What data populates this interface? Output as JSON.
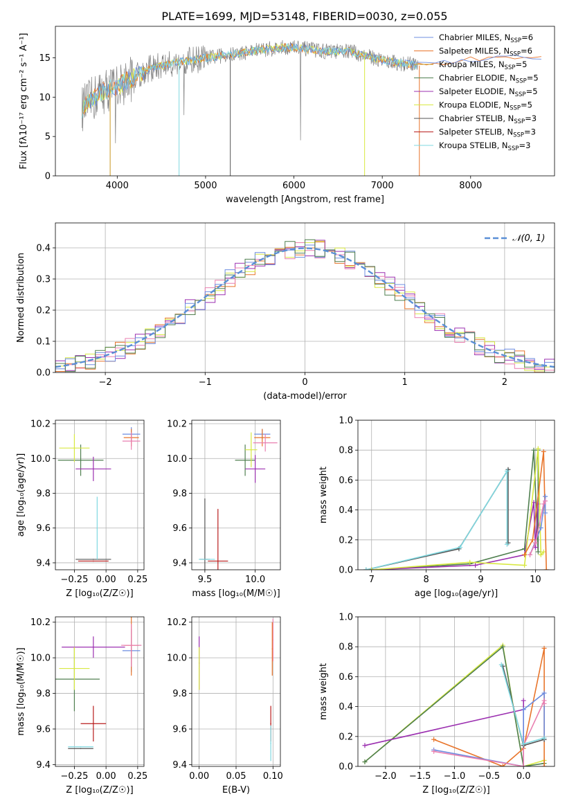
{
  "figure": {
    "title": "PLATE=1699, MJD=53148, FIBERID=0030, z=0.055"
  },
  "colors": {
    "Chabrier MILES": "#6c8ce0",
    "Salpeter MILES": "#e8742a",
    "Kroupa MILES": "#c8961e",
    "Chabrier ELODIE": "#4f7f4f",
    "Salpeter ELODIE": "#9b2fb0",
    "Kroupa ELODIE": "#d8e840",
    "Chabrier STELIB": "#555555",
    "Salpeter STELIB": "#b81c1c",
    "Kroupa STELIB": "#7fd8e0",
    "pink": "#e97fb0",
    "green": "#7ab84a",
    "gaussian": "#5a8fd6"
  },
  "chart_data": [
    {
      "id": "spectrum",
      "type": "line",
      "xlabel": "wavelength [Angstrom, rest frame]",
      "ylabel": "Flux [fλ10⁻¹⁷ erg cm⁻² s⁻¹ A⁻¹]",
      "xlim": [
        3300,
        8950
      ],
      "ylim": [
        0,
        19
      ],
      "xticks": [
        4000,
        5000,
        6000,
        7000,
        8000
      ],
      "yticks": [
        0,
        5,
        10,
        15
      ],
      "grid": false,
      "legend_position": "top-right",
      "legend": [
        {
          "label": "Chabrier MILES, N",
          "sub": "SSP",
          "suffix": "=6",
          "color_key": "Chabrier MILES"
        },
        {
          "label": "Salpeter MILES, N",
          "sub": "SSP",
          "suffix": "=6",
          "color_key": "Salpeter MILES"
        },
        {
          "label": "Kroupa MILES, N",
          "sub": "SSP",
          "suffix": "=5",
          "color_key": "Kroupa MILES"
        },
        {
          "label": "Chabrier ELODIE, N",
          "sub": "SSP",
          "suffix": "=5",
          "color_key": "Chabrier ELODIE"
        },
        {
          "label": "Salpeter ELODIE, N",
          "sub": "SSP",
          "suffix": "=5",
          "color_key": "Salpeter ELODIE"
        },
        {
          "label": "Kroupa ELODIE, N",
          "sub": "SSP",
          "suffix": "=5",
          "color_key": "Kroupa ELODIE"
        },
        {
          "label": "Chabrier STELIB, N",
          "sub": "SSP",
          "suffix": "=3",
          "color_key": "Chabrier STELIB"
        },
        {
          "label": "Salpeter STELIB, N",
          "sub": "SSP",
          "suffix": "=3",
          "color_key": "Salpeter STELIB"
        },
        {
          "label": "Kroupa STELIB, N",
          "sub": "SSP",
          "suffix": "=3",
          "color_key": "Kroupa STELIB"
        }
      ],
      "data_curve": {
        "x": [
          3600,
          3700,
          3800,
          3900,
          4000,
          4100,
          4200,
          4300,
          4400,
          4500,
          4600,
          4700,
          4800,
          4900,
          5000,
          5100,
          5200,
          5300,
          5400,
          5500,
          5600,
          5700,
          5800,
          5900,
          6000,
          6100,
          6200,
          6300,
          6400,
          6500,
          6600,
          6700,
          6800,
          6900,
          7000,
          7100,
          7200,
          7300,
          7400
        ],
        "y": [
          8.5,
          9.5,
          10.5,
          11.0,
          11.3,
          12.0,
          12.6,
          13.3,
          13.7,
          14.0,
          14.2,
          14.5,
          14.6,
          14.8,
          15.0,
          15.1,
          15.3,
          15.4,
          15.6,
          15.8,
          16.0,
          16.1,
          16.2,
          16.3,
          16.3,
          16.2,
          16.0,
          15.9,
          15.8,
          15.8,
          15.9,
          15.6,
          15.3,
          15.0,
          14.7,
          14.5,
          14.3,
          14.2,
          14.0
        ]
      },
      "model_tail": {
        "x": [
          7400,
          7500,
          7600,
          7700,
          7800,
          7900,
          8000,
          8100,
          8200,
          8300,
          8400,
          8500,
          8600,
          8700,
          8800
        ],
        "y": [
          14.2,
          14.3,
          14.4,
          14.4,
          14.6,
          14.7,
          14.8,
          14.9,
          14.9,
          15.0,
          15.0,
          15.1,
          15.1,
          15.1,
          15.2
        ]
      }
    },
    {
      "id": "residuals",
      "type": "line",
      "xlabel": "(data-model)/error",
      "ylabel": "Normed distribution",
      "xlim": [
        -2.5,
        2.5
      ],
      "ylim": [
        0,
        0.48
      ],
      "xticks": [
        -2,
        -1,
        0,
        1,
        2
      ],
      "yticks": [
        0.0,
        0.1,
        0.2,
        0.3,
        0.4
      ],
      "grid": true,
      "legend_position": "top-right",
      "legend_label": "𝒩(0, 1)"
    },
    {
      "id": "age-vs-Z",
      "type": "scatter",
      "xlabel": "Z [log₁₀(Z/Z☉)]",
      "ylabel": "age  [log₁₀(age/yr)]",
      "xlim": [
        -0.4,
        0.3
      ],
      "ylim": [
        9.36,
        10.22
      ],
      "xticks": [
        -0.25,
        0.0,
        0.25
      ],
      "yticks": [
        9.4,
        9.6,
        9.8,
        10.0,
        10.2
      ],
      "grid": true,
      "points": [
        {
          "x": 0.2,
          "y": 10.14,
          "xe": 0.07,
          "ye": 0.04,
          "c": "Chabrier MILES"
        },
        {
          "x": 0.2,
          "y": 10.12,
          "xe": 0.06,
          "ye": 0.05,
          "c": "Salpeter MILES"
        },
        {
          "x": 0.2,
          "y": 10.1,
          "xe": 0.07,
          "ye": 0.05,
          "c": "pink"
        },
        {
          "x": -0.2,
          "y": 9.99,
          "xe": 0.18,
          "ye": 0.09,
          "c": "Chabrier ELODIE"
        },
        {
          "x": -0.1,
          "y": 9.94,
          "xe": 0.14,
          "ye": 0.07,
          "c": "Salpeter ELODIE"
        },
        {
          "x": -0.25,
          "y": 10.06,
          "xe": 0.12,
          "ye": 0.08,
          "c": "Kroupa ELODIE"
        },
        {
          "x": -0.1,
          "y": 9.42,
          "xe": 0.14,
          "ye": 0.0,
          "c": "Chabrier STELIB"
        },
        {
          "x": -0.1,
          "y": 9.41,
          "xe": 0.12,
          "ye": 0.0,
          "c": "Salpeter STELIB"
        },
        {
          "x": -0.07,
          "y": 9.6,
          "xe": 0.0,
          "ye": 0.18,
          "c": "Kroupa STELIB"
        }
      ]
    },
    {
      "id": "age-vs-mass",
      "type": "scatter",
      "xlabel": "mass [log₁₀(M/M☉)]",
      "ylabel": "",
      "xlim": [
        9.37,
        10.25
      ],
      "ylim": [
        9.36,
        10.22
      ],
      "xticks": [
        9.5,
        10.0
      ],
      "yticks": [
        9.4,
        9.6,
        9.8,
        10.0,
        10.2
      ],
      "grid": true,
      "points": [
        {
          "x": 10.07,
          "y": 10.14,
          "xe": 0.08,
          "ye": 0.03,
          "c": "Chabrier MILES"
        },
        {
          "x": 10.07,
          "y": 10.12,
          "xe": 0.08,
          "ye": 0.05,
          "c": "Salpeter MILES"
        },
        {
          "x": 10.1,
          "y": 10.09,
          "xe": 0.12,
          "ye": 0.05,
          "c": "pink"
        },
        {
          "x": 9.9,
          "y": 9.99,
          "xe": 0.1,
          "ye": 0.09,
          "c": "Chabrier ELODIE"
        },
        {
          "x": 10.0,
          "y": 9.94,
          "xe": 0.1,
          "ye": 0.08,
          "c": "Salpeter ELODIE"
        },
        {
          "x": 9.96,
          "y": 10.05,
          "xe": 0.06,
          "ye": 0.1,
          "c": "Kroupa ELODIE"
        },
        {
          "x": 9.5,
          "y": 9.42,
          "xe": 0.05,
          "ye": 0.35,
          "c": "Chabrier STELIB"
        },
        {
          "x": 9.63,
          "y": 9.41,
          "xe": 0.1,
          "ye": 0.3,
          "c": "Salpeter STELIB"
        },
        {
          "x": 9.52,
          "y": 9.42,
          "xe": 0.08,
          "ye": 0.0,
          "c": "Kroupa STELIB"
        }
      ]
    },
    {
      "id": "weight-vs-age",
      "type": "line",
      "xlabel": "age  [log₁₀(age/yr)]",
      "ylabel": "mass weight",
      "xlim": [
        6.75,
        10.35
      ],
      "ylim": [
        0,
        1.0
      ],
      "xticks": [
        7,
        8,
        9,
        10
      ],
      "yticks": [
        0.0,
        0.2,
        0.4,
        0.6,
        0.8,
        1.0
      ],
      "grid": true,
      "series": [
        {
          "c": "Chabrier STELIB",
          "x": [
            6.9,
            8.6,
            9.5,
            9.5
          ],
          "y": [
            0.0,
            0.14,
            0.67,
            0.18
          ]
        },
        {
          "c": "Kroupa STELIB",
          "x": [
            6.9,
            8.62,
            9.48,
            9.48
          ],
          "y": [
            0.0,
            0.15,
            0.66,
            0.17
          ]
        },
        {
          "c": "Chabrier ELODIE",
          "x": [
            7.0,
            8.8,
            9.8,
            9.97,
            10.05,
            10.05
          ],
          "y": [
            0.0,
            0.04,
            0.14,
            0.8,
            0.12,
            0.8
          ]
        },
        {
          "c": "Salpeter ELODIE",
          "x": [
            7.0,
            8.9,
            9.8,
            9.97,
            10.0,
            10.05
          ],
          "y": [
            0.0,
            0.03,
            0.1,
            0.45,
            0.15,
            0.44
          ]
        },
        {
          "c": "Kroupa ELODIE",
          "x": [
            7.0,
            8.8,
            9.8,
            10.05,
            10.1,
            10.15
          ],
          "y": [
            0.0,
            0.05,
            0.03,
            0.81,
            0.1,
            0.12
          ]
        },
        {
          "c": "Salpeter MILES",
          "x": [
            9.8,
            9.95,
            10.15,
            10.2
          ],
          "y": [
            0.1,
            0.2,
            0.79,
            0.0
          ]
        },
        {
          "c": "Chabrier MILES",
          "x": [
            9.9,
            10.1,
            10.18,
            10.18
          ],
          "y": [
            0.1,
            0.28,
            0.49,
            0.38
          ]
        },
        {
          "c": "pink",
          "x": [
            9.9,
            10.0,
            10.15,
            10.18
          ],
          "y": [
            0.1,
            0.18,
            0.44,
            0.46
          ]
        }
      ]
    },
    {
      "id": "mass-vs-Z",
      "type": "scatter",
      "xlabel": "Z [log₁₀(Z/Z☉)]",
      "ylabel": "mass [log₁₀(M/M☉)]",
      "xlim": [
        -0.4,
        0.3
      ],
      "ylim": [
        9.39,
        10.23
      ],
      "xticks": [
        -0.25,
        0.0,
        0.25
      ],
      "yticks": [
        9.4,
        9.6,
        9.8,
        10.0,
        10.2
      ],
      "grid": true,
      "points": [
        {
          "x": 0.2,
          "y": 10.04,
          "xe": 0.07,
          "ye": 0.12,
          "c": "Chabrier MILES"
        },
        {
          "x": 0.2,
          "y": 10.07,
          "xe": 0.06,
          "ye": 0.17,
          "c": "Salpeter MILES"
        },
        {
          "x": 0.2,
          "y": 10.07,
          "xe": 0.08,
          "ye": 0.12,
          "c": "pink"
        },
        {
          "x": -0.25,
          "y": 9.88,
          "xe": 0.2,
          "ye": 0.18,
          "c": "Chabrier ELODIE"
        },
        {
          "x": -0.1,
          "y": 10.06,
          "xe": 0.25,
          "ye": 0.06,
          "c": "Salpeter ELODIE"
        },
        {
          "x": -0.25,
          "y": 9.94,
          "xe": 0.12,
          "ye": 0.12,
          "c": "Kroupa ELODIE"
        },
        {
          "x": -0.2,
          "y": 9.49,
          "xe": 0.1,
          "ye": 0.0,
          "c": "Chabrier STELIB"
        },
        {
          "x": -0.1,
          "y": 9.63,
          "xe": 0.1,
          "ye": 0.1,
          "c": "Salpeter STELIB"
        },
        {
          "x": -0.2,
          "y": 9.5,
          "xe": 0.1,
          "ye": 0.0,
          "c": "Kroupa STELIB"
        }
      ]
    },
    {
      "id": "mass-vs-EBV",
      "type": "scatter",
      "xlabel": "E(B-V)",
      "ylabel": "",
      "xlim": [
        -0.01,
        0.11
      ],
      "ylim": [
        9.39,
        10.23
      ],
      "xticks": [
        0.0,
        0.05,
        0.1
      ],
      "yticks": [
        9.4,
        9.6,
        9.8,
        10.0,
        10.2
      ],
      "grid": true,
      "points": [
        {
          "x": 0.1,
          "y": 10.1,
          "xe": 0.0,
          "ye": 0.12,
          "c": "pink"
        },
        {
          "x": 0.099,
          "y": 10.05,
          "xe": 0.0,
          "ye": 0.15,
          "c": "Salpeter MILES"
        },
        {
          "x": 0.0,
          "y": 9.97,
          "xe": 0.0,
          "ye": 0.15,
          "c": "Salpeter ELODIE"
        },
        {
          "x": 0.0,
          "y": 9.94,
          "xe": 0.0,
          "ye": 0.12,
          "c": "Kroupa ELODIE"
        },
        {
          "x": 0.097,
          "y": 9.63,
          "xe": 0.0,
          "ye": 0.1,
          "c": "Salpeter STELIB"
        },
        {
          "x": 0.097,
          "y": 9.52,
          "xe": 0.0,
          "ye": 0.1,
          "c": "Kroupa STELIB"
        }
      ]
    },
    {
      "id": "weight-vs-Z",
      "type": "line",
      "xlabel": "Z [log₁₀(Z/Z☉)]",
      "ylabel": "mass weight",
      "xlim": [
        -2.4,
        0.45
      ],
      "ylim": [
        0,
        1.0
      ],
      "xticks": [
        -2.0,
        -1.5,
        -1.0,
        -0.5,
        0.0
      ],
      "yticks": [
        0.0,
        0.2,
        0.4,
        0.6,
        0.8,
        1.0
      ],
      "grid": true,
      "series": [
        {
          "c": "Kroupa ELODIE",
          "x": [
            -2.3,
            -0.3,
            0.0,
            0.3,
            0.3
          ],
          "y": [
            0.03,
            0.81,
            0.0,
            0.04,
            0.02
          ]
        },
        {
          "c": "Chabrier ELODIE",
          "x": [
            -2.3,
            -0.3,
            0.0,
            0.3
          ],
          "y": [
            0.03,
            0.8,
            0.0,
            0.02
          ]
        },
        {
          "c": "Salpeter ELODIE",
          "x": [
            -2.3,
            0.0,
            0.0,
            0.0
          ],
          "y": [
            0.14,
            0.38,
            0.44,
            0.0
          ]
        },
        {
          "c": "Salpeter MILES",
          "x": [
            -1.3,
            -0.3,
            0.0,
            0.3,
            0.3
          ],
          "y": [
            0.18,
            0.0,
            0.12,
            0.79,
            0.0
          ]
        },
        {
          "c": "Chabrier MILES",
          "x": [
            -1.3,
            0.0,
            0.0,
            0.3,
            0.3
          ],
          "y": [
            0.11,
            0.0,
            0.38,
            0.49,
            0.18
          ]
        },
        {
          "c": "pink",
          "x": [
            -1.3,
            0.0,
            0.0,
            0.3,
            0.3
          ],
          "y": [
            0.1,
            0.0,
            0.14,
            0.44,
            0.42
          ]
        },
        {
          "c": "Chabrier STELIB",
          "x": [
            -0.3,
            0.0,
            0.3
          ],
          "y": [
            0.67,
            0.14,
            0.18
          ]
        },
        {
          "c": "Kroupa STELIB",
          "x": [
            -0.32,
            0.0,
            0.3
          ],
          "y": [
            0.68,
            0.15,
            0.19
          ]
        }
      ]
    }
  ]
}
